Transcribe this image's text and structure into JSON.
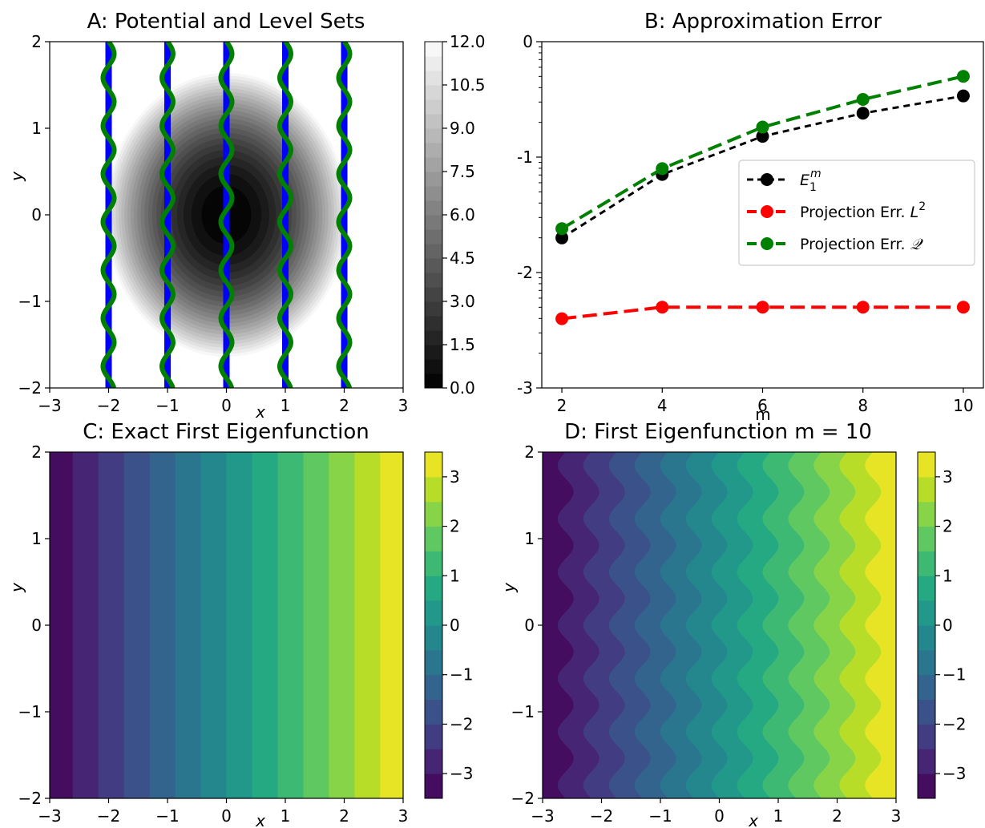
{
  "colors": {
    "blue": "#0000ff",
    "green": "#008000",
    "red": "#ff0000",
    "black": "#000000"
  },
  "chart_data": [
    {
      "id": "A",
      "type": "heatmap",
      "title": "A: Potential and Level Sets",
      "xlabel": "x",
      "ylabel": "y",
      "xlim": [
        -3,
        3
      ],
      "ylim": [
        -2,
        2
      ],
      "xticks": [
        "−3",
        "−2",
        "−1",
        "0",
        "1",
        "2",
        "3"
      ],
      "yticks": [
        "−2",
        "−1",
        "0",
        "1",
        "2"
      ],
      "colorbar": {
        "colormap": "gray",
        "range": [
          0,
          12
        ],
        "levels": 24,
        "ticks": [
          "0.0",
          "1.5",
          "3.0",
          "4.5",
          "6.0",
          "7.5",
          "9.0",
          "10.5",
          "12.0"
        ]
      },
      "overlay_lines": {
        "x": [
          -2,
          -1,
          0,
          1,
          2
        ],
        "blue": "straight vertical",
        "green": "wavy vertical"
      }
    },
    {
      "id": "B",
      "type": "line",
      "title": "B: Approximation Error",
      "xlabel": "m",
      "ylabel": "",
      "xlim": [
        1.6,
        10.4
      ],
      "ylim": [
        -3,
        0
      ],
      "yscale": "log",
      "xticks": [
        2,
        4,
        6,
        8,
        10
      ],
      "yticks": [
        "-3",
        "-2",
        "-1",
        "0"
      ],
      "legend": "center-right",
      "series": [
        {
          "name": "E",
          "name_sub": "1",
          "name_sup": "m",
          "color": "#000000",
          "x": [
            2,
            4,
            6,
            8,
            10
          ],
          "log10_values": [
            -1.7,
            -1.15,
            -0.82,
            -0.62,
            -0.47
          ]
        },
        {
          "name": "Projection Err. ",
          "name_var": "L",
          "name_sup": "2",
          "color": "#ff0000",
          "x": [
            2,
            4,
            6,
            8,
            10
          ],
          "log10_values": [
            -2.4,
            -2.3,
            -2.3,
            -2.3,
            -2.3
          ]
        },
        {
          "name": "Projection Err. ",
          "name_var": "𝒬",
          "color": "#008000",
          "x": [
            2,
            4,
            6,
            8,
            10
          ],
          "log10_values": [
            -1.62,
            -1.1,
            -0.74,
            -0.5,
            -0.3
          ]
        }
      ]
    },
    {
      "id": "C",
      "type": "heatmap",
      "title": "C: Exact First Eigenfunction",
      "xlabel": "x",
      "ylabel": "y",
      "xlim": [
        -3,
        3
      ],
      "ylim": [
        -2,
        2
      ],
      "xticks": [
        "−3",
        "−2",
        "−1",
        "0",
        "1",
        "2",
        "3"
      ],
      "yticks": [
        "−2",
        "−1",
        "0",
        "1",
        "2"
      ],
      "colorbar": {
        "colormap": "viridis",
        "range": [
          -3.5,
          3.5
        ],
        "levels": 14,
        "ticks": [
          "−3",
          "−2",
          "−1",
          "0",
          "1",
          "2",
          "3"
        ]
      },
      "field": "u = 1.15 x"
    },
    {
      "id": "D",
      "type": "heatmap",
      "title": "D: First Eigenfunction m = 10",
      "xlabel": "x",
      "ylabel": "y",
      "xlim": [
        -3,
        3
      ],
      "ylim": [
        -2,
        2
      ],
      "xticks": [
        "−3",
        "−2",
        "−1",
        "0",
        "1",
        "2",
        "3"
      ],
      "yticks": [
        "−2",
        "−1",
        "0",
        "1",
        "2"
      ],
      "colorbar": {
        "colormap": "viridis",
        "range": [
          -3.5,
          3.5
        ],
        "levels": 14,
        "ticks": [
          "−3",
          "−2",
          "−1",
          "0",
          "1",
          "2",
          "3"
        ]
      },
      "field": "u = 1.15 (x + 0.06 sin(8 y))"
    }
  ]
}
